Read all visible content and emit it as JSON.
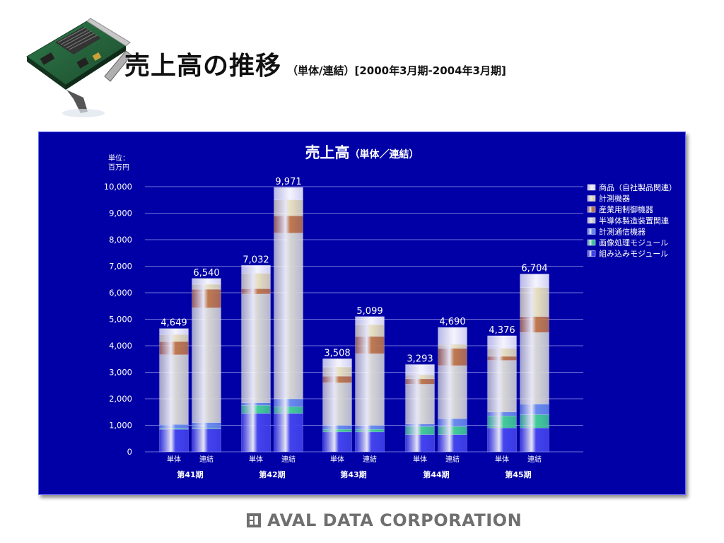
{
  "slide": {
    "title": "売上高の推移",
    "subtitle": "（単体/連結）[2000年3月期-2004年3月期]"
  },
  "footer": {
    "company": "AVAL DATA CORPORATION"
  },
  "colors": {
    "panel": "#0000a6",
    "series": [
      "#4444ee",
      "#44cc99",
      "#6a8cee",
      "#d6d6d6",
      "#c07a50",
      "#e8e0c0",
      "#f4f4ff"
    ]
  },
  "chart_data": {
    "type": "bar",
    "stacked": true,
    "title": "売上高",
    "title_suffix": "（単体／連結）",
    "unit_label": [
      "単位：",
      "百万円"
    ],
    "ylim": [
      0,
      10000
    ],
    "y_ticks": [
      {
        "value": 0,
        "label": "0"
      },
      {
        "value": 1000,
        "label": "1,000"
      },
      {
        "value": 2000,
        "label": "2,000"
      },
      {
        "value": 3000,
        "label": "3,000"
      },
      {
        "value": 4000,
        "label": "4,000"
      },
      {
        "value": 5000,
        "label": "5,000"
      },
      {
        "value": 6000,
        "label": "6,000"
      },
      {
        "value": 7000,
        "label": "7,000"
      },
      {
        "value": 8000,
        "label": "8,000"
      },
      {
        "value": 9000,
        "label": "9,000"
      },
      {
        "value": 10000,
        "label": "10,000"
      }
    ],
    "grid": true,
    "legend_position": "top-right",
    "groups": [
      "第41期",
      "第42期",
      "第43期",
      "第44期",
      "第45期"
    ],
    "bar_labels": [
      "単体",
      "連結"
    ],
    "series_names": [
      "組み込みモジュール",
      "画像処理モジュール",
      "計測通信機器",
      "半導体製造装置関連",
      "産業用制御機器",
      "計測機器",
      "商品（自社製品関連）"
    ],
    "legend": [
      "商品（自社製品関連）",
      "計測機器",
      "産業用制御機器",
      "半導体製造装置関連",
      "計測通信機器",
      "画像処理モジュール",
      "組み込みモジュール"
    ],
    "bars": [
      {
        "group": "第41期",
        "label": "単体",
        "total": 4649,
        "total_label": "4,649",
        "segments": [
          850,
          30,
          150,
          2630,
          500,
          260,
          229
        ]
      },
      {
        "group": "第41期",
        "label": "連結",
        "total": 6540,
        "total_label": "6,540",
        "segments": [
          870,
          30,
          200,
          4330,
          700,
          190,
          220
        ]
      },
      {
        "group": "第42期",
        "label": "単体",
        "total": 7032,
        "total_label": "7,032",
        "segments": [
          1450,
          300,
          100,
          4100,
          200,
          580,
          302
        ]
      },
      {
        "group": "第42期",
        "label": "連結",
        "total": 9971,
        "total_label": "9,971",
        "segments": [
          1450,
          250,
          300,
          6250,
          650,
          600,
          471
        ]
      },
      {
        "group": "第43期",
        "label": "単体",
        "total": 3508,
        "total_label": "3,508",
        "segments": [
          750,
          100,
          150,
          1600,
          250,
          350,
          308
        ]
      },
      {
        "group": "第43期",
        "label": "連結",
        "total": 5099,
        "total_label": "5,099",
        "segments": [
          750,
          100,
          150,
          2700,
          650,
          450,
          299
        ]
      },
      {
        "group": "第44期",
        "label": "単体",
        "total": 3293,
        "total_label": "3,293",
        "segments": [
          650,
          300,
          100,
          1500,
          200,
          150,
          393
        ]
      },
      {
        "group": "第44期",
        "label": "連結",
        "total": 4690,
        "total_label": "4,690",
        "segments": [
          650,
          300,
          300,
          2000,
          650,
          150,
          640
        ]
      },
      {
        "group": "第45期",
        "label": "単体",
        "total": 4376,
        "total_label": "4,376",
        "segments": [
          900,
          450,
          150,
          1950,
          150,
          300,
          476
        ]
      },
      {
        "group": "第45期",
        "label": "連結",
        "total": 6704,
        "total_label": "6,704",
        "segments": [
          900,
          500,
          400,
          2700,
          600,
          1100,
          504
        ]
      }
    ]
  }
}
